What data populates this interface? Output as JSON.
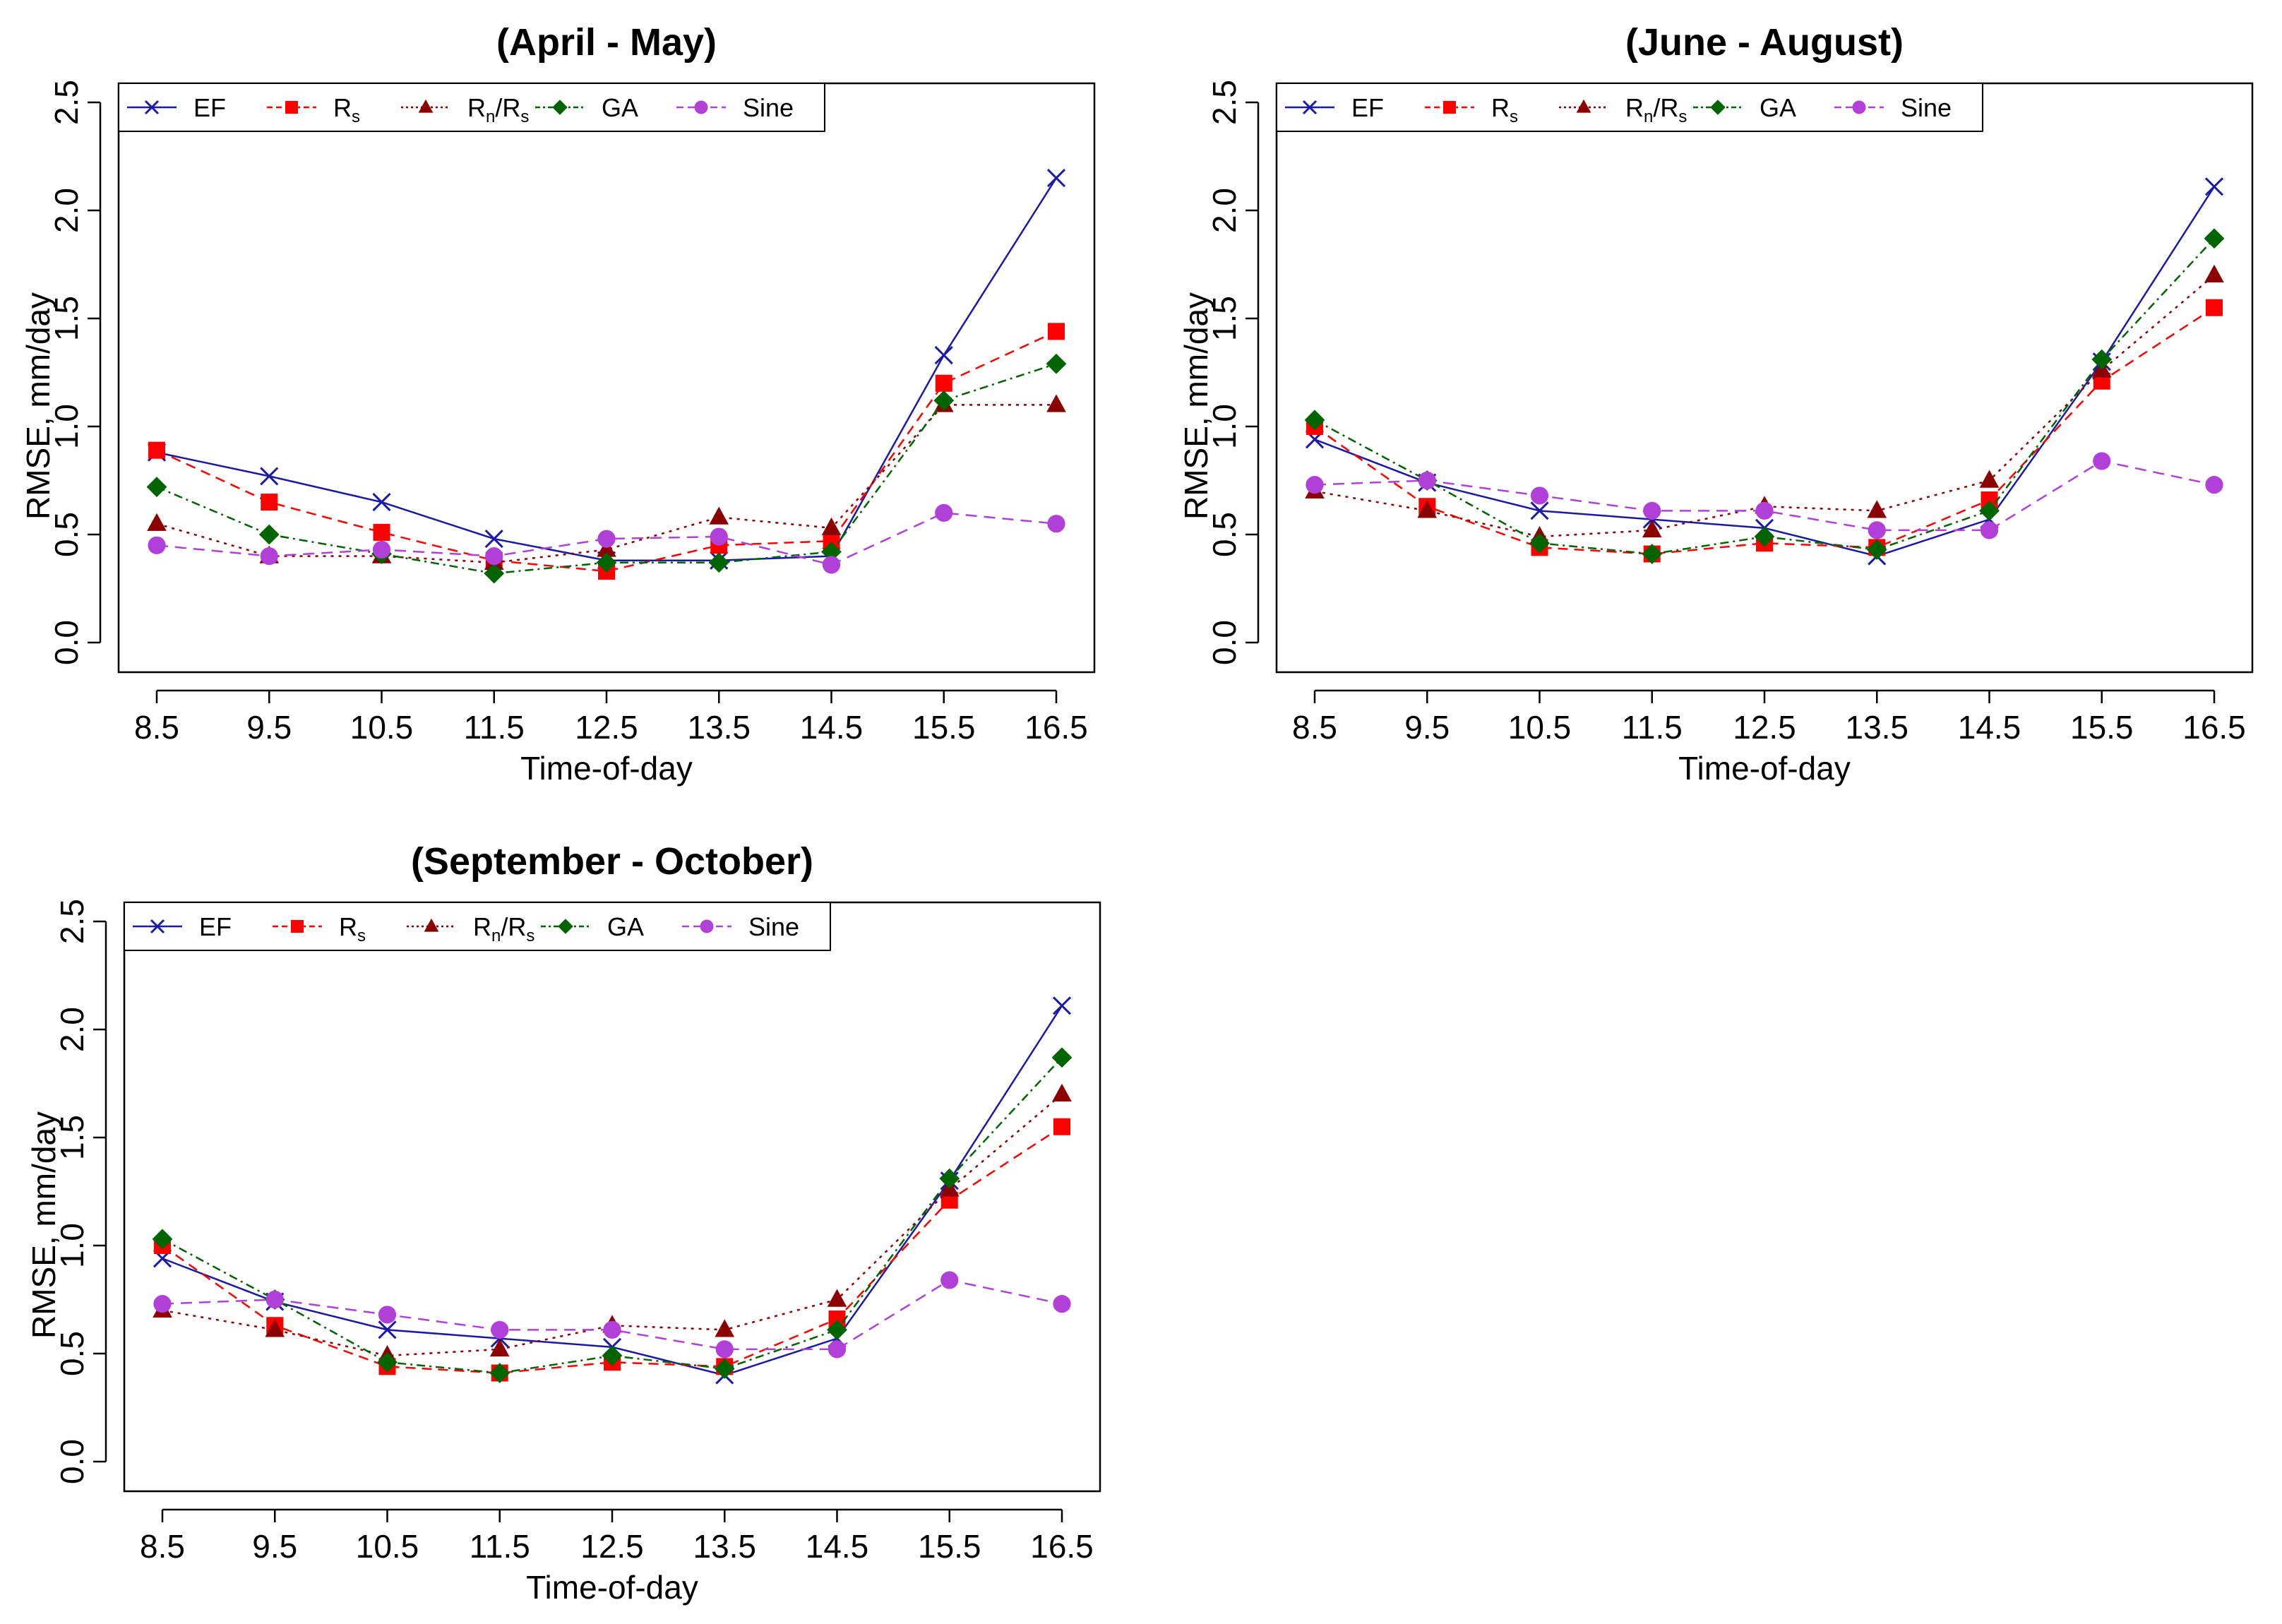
{
  "chart_data": [
    {
      "type": "line",
      "title": "(April - May)",
      "xlabel": "Time-of-day",
      "ylabel": "RMSE, mm/day",
      "categories": [
        "8.5",
        "9.5",
        "10.5",
        "11.5",
        "12.5",
        "13.5",
        "14.5",
        "15.5",
        "16.5"
      ],
      "yticks": [
        "0.0",
        "0.5",
        "1.0",
        "1.5",
        "2.0",
        "2.5"
      ],
      "ylim": [
        0,
        2.5
      ],
      "legend": {
        "ef": "EF",
        "rs_main": "R",
        "rs_sub": "s",
        "ratio_a": "R",
        "ratio_a_sub": "n",
        "ratio_sep": "/R",
        "ratio_b_sub": "s",
        "ga": "GA",
        "sine": "Sine"
      },
      "series": [
        {
          "name": "EF",
          "color": "#1a1aa6",
          "marker": "x",
          "dash": "",
          "values": [
            0.88,
            0.77,
            0.65,
            0.48,
            0.38,
            0.38,
            0.4,
            1.33,
            2.15
          ]
        },
        {
          "name": "Rs",
          "color": "#ff0000",
          "marker": "square",
          "dash": "14,9",
          "values": [
            0.89,
            0.65,
            0.51,
            0.38,
            0.33,
            0.45,
            0.47,
            1.2,
            1.44
          ]
        },
        {
          "name": "Rn/Rs",
          "color": "#8b0000",
          "marker": "triangle",
          "dash": "4,7",
          "values": [
            0.55,
            0.4,
            0.4,
            0.37,
            0.43,
            0.58,
            0.53,
            1.1,
            1.1
          ]
        },
        {
          "name": "GA",
          "color": "#006400",
          "marker": "diamond",
          "dash": "12,6,3,6",
          "values": [
            0.72,
            0.5,
            0.41,
            0.32,
            0.37,
            0.37,
            0.42,
            1.12,
            1.29
          ]
        },
        {
          "name": "Sine",
          "color": "#b040d8",
          "marker": "circle",
          "dash": "16,10",
          "values": [
            0.45,
            0.4,
            0.43,
            0.4,
            0.48,
            0.49,
            0.36,
            0.6,
            0.55
          ]
        }
      ]
    },
    {
      "type": "line",
      "title": "(June - August)",
      "xlabel": "Time-of-day",
      "ylabel": "RMSE, mm/day",
      "categories": [
        "8.5",
        "9.5",
        "10.5",
        "11.5",
        "12.5",
        "13.5",
        "14.5",
        "15.5",
        "16.5"
      ],
      "yticks": [
        "0.0",
        "0.5",
        "1.0",
        "1.5",
        "2.0",
        "2.5"
      ],
      "ylim": [
        0,
        2.5
      ],
      "legend": {
        "ef": "EF",
        "rs_main": "R",
        "rs_sub": "s",
        "ratio_a": "R",
        "ratio_a_sub": "n",
        "ratio_sep": "/R",
        "ratio_b_sub": "s",
        "ga": "GA",
        "sine": "Sine"
      },
      "series": [
        {
          "name": "EF",
          "color": "#1a1aa6",
          "marker": "x",
          "dash": "",
          "values": [
            0.94,
            0.74,
            0.61,
            0.57,
            0.53,
            0.4,
            0.57,
            1.3,
            2.11
          ]
        },
        {
          "name": "Rs",
          "color": "#ff0000",
          "marker": "square",
          "dash": "14,9",
          "values": [
            1.0,
            0.63,
            0.44,
            0.41,
            0.46,
            0.44,
            0.66,
            1.21,
            1.55
          ]
        },
        {
          "name": "Rn/Rs",
          "color": "#8b0000",
          "marker": "triangle",
          "dash": "4,7",
          "values": [
            0.7,
            0.61,
            0.49,
            0.52,
            0.63,
            0.61,
            0.75,
            1.26,
            1.7
          ]
        },
        {
          "name": "GA",
          "color": "#006400",
          "marker": "diamond",
          "dash": "12,6,3,6",
          "values": [
            1.03,
            0.75,
            0.46,
            0.41,
            0.49,
            0.43,
            0.61,
            1.31,
            1.87
          ]
        },
        {
          "name": "Sine",
          "color": "#b040d8",
          "marker": "circle",
          "dash": "16,10",
          "values": [
            0.73,
            0.75,
            0.68,
            0.61,
            0.61,
            0.52,
            0.52,
            0.84,
            0.73
          ]
        }
      ]
    },
    {
      "type": "line",
      "title": "(September - October)",
      "xlabel": "Time-of-day",
      "ylabel": "RMSE, mm/day",
      "categories": [
        "8.5",
        "9.5",
        "10.5",
        "11.5",
        "12.5",
        "13.5",
        "14.5",
        "15.5",
        "16.5"
      ],
      "yticks": [
        "0.0",
        "0.5",
        "1.0",
        "1.5",
        "2.0",
        "2.5"
      ],
      "ylim": [
        0,
        2.5
      ],
      "legend": {
        "ef": "EF",
        "rs_main": "R",
        "rs_sub": "s",
        "ratio_a": "R",
        "ratio_a_sub": "n",
        "ratio_sep": "/R",
        "ratio_b_sub": "s",
        "ga": "GA",
        "sine": "Sine"
      },
      "series": [
        {
          "name": "EF",
          "color": "#1a1aa6",
          "marker": "x",
          "dash": "",
          "values": [
            0.94,
            0.74,
            0.61,
            0.57,
            0.53,
            0.4,
            0.57,
            1.3,
            2.11
          ]
        },
        {
          "name": "Rs",
          "color": "#ff0000",
          "marker": "square",
          "dash": "14,9",
          "values": [
            1.0,
            0.63,
            0.44,
            0.41,
            0.46,
            0.44,
            0.66,
            1.21,
            1.55
          ]
        },
        {
          "name": "Rn/Rs",
          "color": "#8b0000",
          "marker": "triangle",
          "dash": "4,7",
          "values": [
            0.7,
            0.61,
            0.49,
            0.52,
            0.63,
            0.61,
            0.75,
            1.26,
            1.7
          ]
        },
        {
          "name": "GA",
          "color": "#006400",
          "marker": "diamond",
          "dash": "12,6,3,6",
          "values": [
            1.03,
            0.75,
            0.46,
            0.41,
            0.49,
            0.43,
            0.61,
            1.31,
            1.87
          ]
        },
        {
          "name": "Sine",
          "color": "#b040d8",
          "marker": "circle",
          "dash": "16,10",
          "values": [
            0.73,
            0.75,
            0.68,
            0.61,
            0.61,
            0.52,
            0.52,
            0.84,
            0.73
          ]
        }
      ]
    }
  ]
}
